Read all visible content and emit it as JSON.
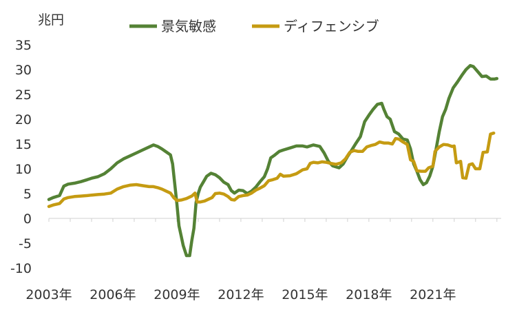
{
  "chart_data": {
    "type": "line",
    "title": "",
    "unit_label": "兆円",
    "ylim": [
      -10,
      35
    ],
    "y_ticks": [
      35,
      30,
      25,
      20,
      15,
      10,
      5,
      0,
      -5,
      -10
    ],
    "xlim": [
      2003.0,
      2024.2
    ],
    "x_tick_labels": [
      "2003年",
      "2006年",
      "2009年",
      "2012年",
      "2015年",
      "2018年",
      "2021年"
    ],
    "x_tick_values": [
      2003,
      2006,
      2009,
      2012,
      2015,
      2018,
      2021
    ],
    "legend_position": "top-center",
    "grid": false,
    "series": [
      {
        "name": "景気敏感",
        "color": "#548235",
        "points": [
          [
            2003.0,
            3.8
          ],
          [
            2003.2,
            4.2
          ],
          [
            2003.5,
            4.6
          ],
          [
            2003.7,
            6.5
          ],
          [
            2003.9,
            6.9
          ],
          [
            2004.2,
            7.1
          ],
          [
            2004.5,
            7.4
          ],
          [
            2004.8,
            7.8
          ],
          [
            2005.0,
            8.1
          ],
          [
            2005.3,
            8.4
          ],
          [
            2005.6,
            9.0
          ],
          [
            2005.9,
            10.0
          ],
          [
            2006.2,
            11.2
          ],
          [
            2006.5,
            12.0
          ],
          [
            2006.8,
            12.6
          ],
          [
            2007.1,
            13.2
          ],
          [
            2007.4,
            13.8
          ],
          [
            2007.7,
            14.4
          ],
          [
            2007.9,
            14.8
          ],
          [
            2008.1,
            14.5
          ],
          [
            2008.3,
            14.0
          ],
          [
            2008.5,
            13.4
          ],
          [
            2008.7,
            12.8
          ],
          [
            2008.8,
            11.0
          ],
          [
            2008.9,
            7.0
          ],
          [
            2009.0,
            3.0
          ],
          [
            2009.1,
            -1.5
          ],
          [
            2009.2,
            -3.5
          ],
          [
            2009.3,
            -5.5
          ],
          [
            2009.45,
            -7.5
          ],
          [
            2009.6,
            -7.5
          ],
          [
            2009.7,
            -4.5
          ],
          [
            2009.8,
            -2.0
          ],
          [
            2009.9,
            3.2
          ],
          [
            2010.0,
            5.0
          ],
          [
            2010.1,
            6.3
          ],
          [
            2010.25,
            7.4
          ],
          [
            2010.4,
            8.5
          ],
          [
            2010.6,
            9.1
          ],
          [
            2010.8,
            8.8
          ],
          [
            2011.0,
            8.2
          ],
          [
            2011.2,
            7.3
          ],
          [
            2011.4,
            6.8
          ],
          [
            2011.55,
            5.6
          ],
          [
            2011.7,
            5.1
          ],
          [
            2011.9,
            5.7
          ],
          [
            2012.1,
            5.6
          ],
          [
            2012.3,
            5.0
          ],
          [
            2012.5,
            5.5
          ],
          [
            2012.7,
            6.3
          ],
          [
            2012.9,
            7.4
          ],
          [
            2013.1,
            8.4
          ],
          [
            2013.25,
            10.0
          ],
          [
            2013.4,
            12.2
          ],
          [
            2013.6,
            12.8
          ],
          [
            2013.8,
            13.5
          ],
          [
            2014.0,
            13.8
          ],
          [
            2014.3,
            14.2
          ],
          [
            2014.6,
            14.6
          ],
          [
            2014.9,
            14.6
          ],
          [
            2015.1,
            14.4
          ],
          [
            2015.4,
            14.8
          ],
          [
            2015.7,
            14.5
          ],
          [
            2015.9,
            13.2
          ],
          [
            2016.1,
            11.5
          ],
          [
            2016.3,
            10.6
          ],
          [
            2016.6,
            10.2
          ],
          [
            2016.8,
            11.0
          ],
          [
            2017.0,
            12.5
          ],
          [
            2017.2,
            13.8
          ],
          [
            2017.4,
            15.2
          ],
          [
            2017.6,
            16.5
          ],
          [
            2017.8,
            19.5
          ],
          [
            2018.0,
            20.8
          ],
          [
            2018.2,
            22.0
          ],
          [
            2018.4,
            23.0
          ],
          [
            2018.6,
            23.2
          ],
          [
            2018.7,
            22.0
          ],
          [
            2018.85,
            20.5
          ],
          [
            2019.0,
            20.0
          ],
          [
            2019.2,
            17.5
          ],
          [
            2019.4,
            17.0
          ],
          [
            2019.6,
            16.0
          ],
          [
            2019.8,
            15.8
          ],
          [
            2019.95,
            14.0
          ],
          [
            2020.1,
            11.0
          ],
          [
            2020.25,
            9.5
          ],
          [
            2020.4,
            7.8
          ],
          [
            2020.55,
            6.8
          ],
          [
            2020.7,
            7.2
          ],
          [
            2020.85,
            8.5
          ],
          [
            2021.0,
            10.5
          ],
          [
            2021.15,
            14.0
          ],
          [
            2021.3,
            17.5
          ],
          [
            2021.45,
            20.5
          ],
          [
            2021.6,
            22.0
          ],
          [
            2021.75,
            24.2
          ],
          [
            2021.95,
            26.3
          ],
          [
            2022.15,
            27.5
          ],
          [
            2022.35,
            28.8
          ],
          [
            2022.55,
            30.0
          ],
          [
            2022.75,
            30.8
          ],
          [
            2022.9,
            30.6
          ],
          [
            2023.1,
            29.6
          ],
          [
            2023.3,
            28.6
          ],
          [
            2023.5,
            28.7
          ],
          [
            2023.7,
            28.1
          ],
          [
            2023.9,
            28.1
          ],
          [
            2024.0,
            28.2
          ]
        ]
      },
      {
        "name": "ディフェンシブ",
        "color": "#C59B12",
        "points": [
          [
            2003.0,
            2.4
          ],
          [
            2003.2,
            2.7
          ],
          [
            2003.5,
            3.0
          ],
          [
            2003.7,
            3.9
          ],
          [
            2003.9,
            4.2
          ],
          [
            2004.2,
            4.4
          ],
          [
            2004.5,
            4.5
          ],
          [
            2004.8,
            4.6
          ],
          [
            2005.0,
            4.7
          ],
          [
            2005.3,
            4.8
          ],
          [
            2005.6,
            4.9
          ],
          [
            2005.9,
            5.1
          ],
          [
            2006.2,
            5.9
          ],
          [
            2006.5,
            6.4
          ],
          [
            2006.8,
            6.7
          ],
          [
            2007.1,
            6.8
          ],
          [
            2007.4,
            6.6
          ],
          [
            2007.7,
            6.4
          ],
          [
            2007.9,
            6.4
          ],
          [
            2008.1,
            6.2
          ],
          [
            2008.3,
            5.9
          ],
          [
            2008.5,
            5.5
          ],
          [
            2008.7,
            5.1
          ],
          [
            2008.85,
            4.2
          ],
          [
            2009.0,
            3.6
          ],
          [
            2009.2,
            3.7
          ],
          [
            2009.45,
            4.0
          ],
          [
            2009.7,
            4.5
          ],
          [
            2009.85,
            5.1
          ],
          [
            2009.95,
            3.3
          ],
          [
            2010.1,
            3.3
          ],
          [
            2010.3,
            3.5
          ],
          [
            2010.5,
            3.9
          ],
          [
            2010.65,
            4.2
          ],
          [
            2010.8,
            5.0
          ],
          [
            2011.0,
            5.1
          ],
          [
            2011.2,
            4.9
          ],
          [
            2011.4,
            4.4
          ],
          [
            2011.55,
            3.8
          ],
          [
            2011.7,
            3.7
          ],
          [
            2011.9,
            4.4
          ],
          [
            2012.1,
            4.6
          ],
          [
            2012.3,
            4.7
          ],
          [
            2012.5,
            5.1
          ],
          [
            2012.7,
            5.7
          ],
          [
            2012.9,
            6.1
          ],
          [
            2013.1,
            6.6
          ],
          [
            2013.3,
            7.6
          ],
          [
            2013.5,
            7.8
          ],
          [
            2013.7,
            8.1
          ],
          [
            2013.85,
            8.9
          ],
          [
            2014.0,
            8.5
          ],
          [
            2014.3,
            8.6
          ],
          [
            2014.6,
            9.0
          ],
          [
            2014.9,
            9.8
          ],
          [
            2015.1,
            10.0
          ],
          [
            2015.25,
            11.1
          ],
          [
            2015.4,
            11.3
          ],
          [
            2015.6,
            11.2
          ],
          [
            2015.8,
            11.4
          ],
          [
            2016.0,
            11.3
          ],
          [
            2016.2,
            11.1
          ],
          [
            2016.45,
            10.9
          ],
          [
            2016.7,
            11.2
          ],
          [
            2016.9,
            12.0
          ],
          [
            2017.1,
            13.3
          ],
          [
            2017.3,
            13.7
          ],
          [
            2017.5,
            13.5
          ],
          [
            2017.7,
            13.5
          ],
          [
            2017.9,
            14.4
          ],
          [
            2018.1,
            14.7
          ],
          [
            2018.3,
            14.9
          ],
          [
            2018.5,
            15.4
          ],
          [
            2018.7,
            15.2
          ],
          [
            2018.9,
            15.2
          ],
          [
            2019.1,
            15.0
          ],
          [
            2019.25,
            16.1
          ],
          [
            2019.4,
            16.0
          ],
          [
            2019.6,
            15.4
          ],
          [
            2019.8,
            14.9
          ],
          [
            2019.95,
            11.8
          ],
          [
            2020.1,
            11.5
          ],
          [
            2020.25,
            9.6
          ],
          [
            2020.45,
            9.5
          ],
          [
            2020.65,
            9.5
          ],
          [
            2020.8,
            10.2
          ],
          [
            2021.0,
            10.5
          ],
          [
            2021.1,
            13.5
          ],
          [
            2021.3,
            14.4
          ],
          [
            2021.5,
            14.9
          ],
          [
            2021.7,
            14.8
          ],
          [
            2021.9,
            14.5
          ],
          [
            2022.0,
            14.6
          ],
          [
            2022.1,
            11.2
          ],
          [
            2022.3,
            11.5
          ],
          [
            2022.4,
            8.2
          ],
          [
            2022.55,
            8.1
          ],
          [
            2022.7,
            10.8
          ],
          [
            2022.85,
            11.0
          ],
          [
            2023.0,
            10.0
          ],
          [
            2023.2,
            10.0
          ],
          [
            2023.35,
            13.3
          ],
          [
            2023.55,
            13.4
          ],
          [
            2023.7,
            17.0
          ],
          [
            2023.85,
            17.2
          ]
        ]
      }
    ]
  },
  "legend": [
    {
      "name": "景気敏感",
      "color": "#548235"
    },
    {
      "name": "ディフェンシブ",
      "color": "#C59B12"
    }
  ]
}
